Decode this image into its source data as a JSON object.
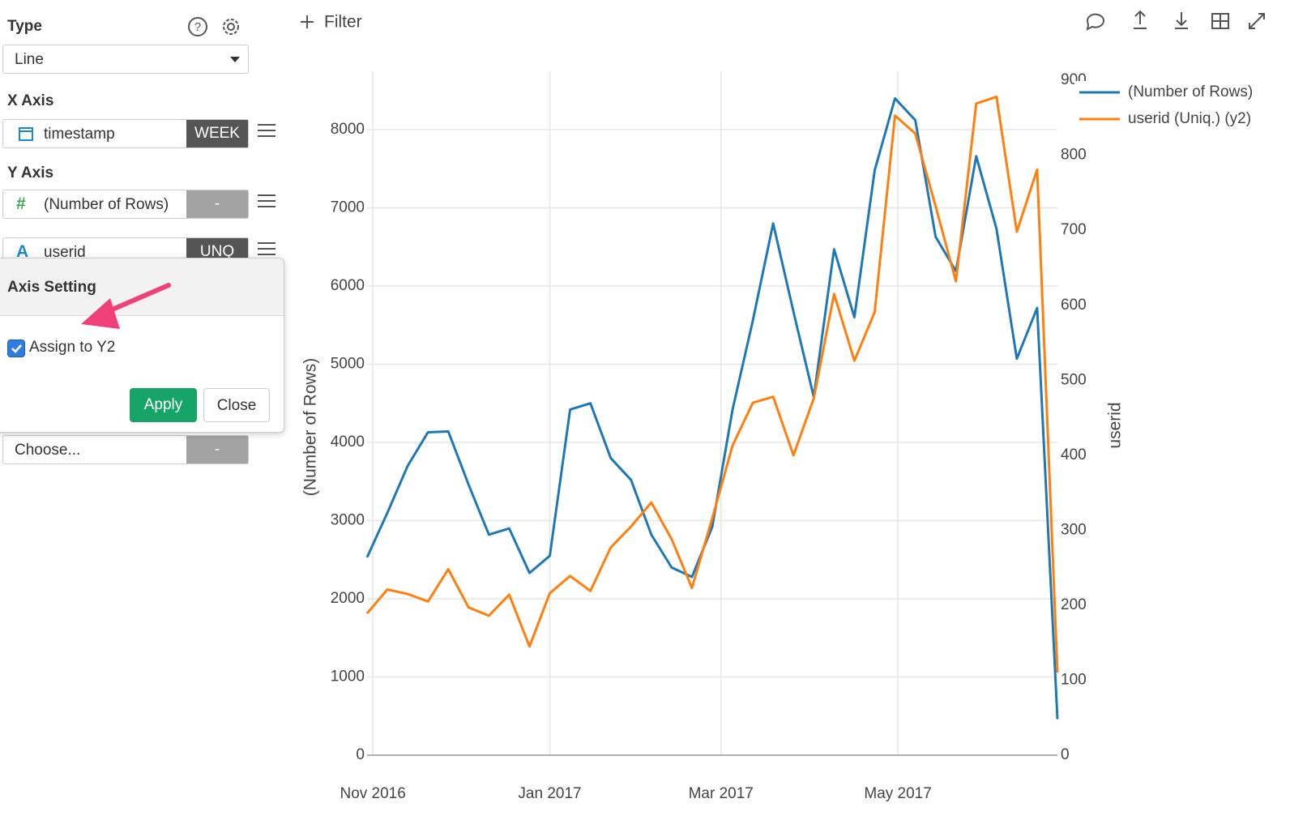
{
  "sidebar": {
    "type_label": "Type",
    "type_value": "Line",
    "x_axis_label": "X Axis",
    "x_field": "timestamp",
    "x_agg": "WEEK",
    "y_axis_label": "Y Axis",
    "y_fields": [
      {
        "icon": "#",
        "name": "(Number of Rows)",
        "agg": "-"
      },
      {
        "icon": "A",
        "name": "userid",
        "agg": "UNQ"
      }
    ],
    "popup": {
      "title": "Axis Setting",
      "checkbox": "Assign to Y2",
      "apply": "Apply",
      "close": "Close"
    },
    "choose": {
      "name": "Choose...",
      "agg": "-"
    }
  },
  "toolbar": {
    "filter": "Filter"
  },
  "chart_data": {
    "type": "line",
    "x": [
      "2016-10-30",
      "2016-11-06",
      "2016-11-13",
      "2016-11-20",
      "2016-11-27",
      "2016-12-04",
      "2016-12-11",
      "2016-12-18",
      "2016-12-25",
      "2017-01-01",
      "2017-01-08",
      "2017-01-15",
      "2017-01-22",
      "2017-01-29",
      "2017-02-05",
      "2017-02-12",
      "2017-02-19",
      "2017-02-26",
      "2017-03-05",
      "2017-03-12",
      "2017-03-19",
      "2017-03-26",
      "2017-04-02",
      "2017-04-09",
      "2017-04-16",
      "2017-04-23",
      "2017-04-30",
      "2017-05-07",
      "2017-05-14",
      "2017-05-21",
      "2017-05-28",
      "2017-06-04",
      "2017-06-11",
      "2017-06-18",
      "2017-06-25"
    ],
    "series": [
      {
        "name": "(Number of Rows)",
        "color": "#1f77b4",
        "values": [
          2530,
          3100,
          3700,
          4130,
          4140,
          3460,
          2820,
          2900,
          2330,
          2550,
          4420,
          4500,
          3800,
          3520,
          2820,
          2400,
          2280,
          2920,
          4420,
          5560,
          6800,
          5670,
          4580,
          6470,
          5600,
          7480,
          8400,
          8120,
          6630,
          6190,
          7660,
          6730,
          5070,
          5720,
          460
        ]
      },
      {
        "name": "userid (Uniq.) (y2)",
        "color": "#ff7f0e",
        "axis": "y2",
        "values": [
          189,
          221,
          215,
          205,
          248,
          197,
          186,
          214,
          145,
          216,
          239,
          219,
          277,
          305,
          337,
          288,
          223,
          316,
          413,
          470,
          478,
          400,
          476,
          615,
          526,
          591,
          853,
          829,
          732,
          632,
          869,
          878,
          698,
          781,
          110
        ]
      }
    ],
    "y_label": "(Number of Rows)",
    "y2_label": "userid",
    "xlim": [
      "2016-10-30",
      "2017-06-25"
    ],
    "xticks": [
      {
        "value": "2016-11-01",
        "label": "Nov 2016"
      },
      {
        "value": "2017-01-01",
        "label": "Jan 2017"
      },
      {
        "value": "2017-03-01",
        "label": "Mar 2017"
      },
      {
        "value": "2017-05-01",
        "label": "May 2017"
      }
    ],
    "ylim": [
      0,
      8746
    ],
    "yticks": [
      0,
      1000,
      2000,
      3000,
      4000,
      5000,
      6000,
      7000,
      8000
    ],
    "y2lim": [
      0,
      912
    ],
    "y2ticks": [
      0,
      100,
      200,
      300,
      400,
      500,
      600,
      700,
      800,
      900
    ],
    "grid": true,
    "legend": "top-right"
  }
}
